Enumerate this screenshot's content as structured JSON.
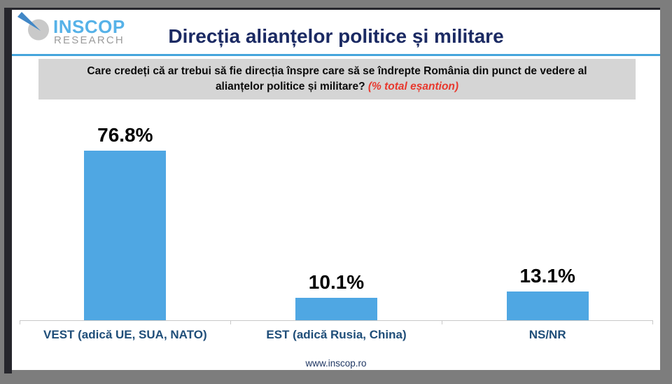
{
  "logo": {
    "brand": "INSCOP",
    "sub": "RESEARCH"
  },
  "header": {
    "title": "Direcția alianțelor politice și militare"
  },
  "question": {
    "text": "Care credeți că ar trebui să fie direcția înspre care să se îndrepte România din punct de vedere al alianțelor politice și militare?",
    "note": "(% total eșantion)"
  },
  "chart_data": {
    "type": "bar",
    "categories": [
      "VEST (adică UE, SUA, NATO)",
      "EST (adică Rusia, China)",
      "NS/NR"
    ],
    "values": [
      76.8,
      10.1,
      13.1
    ],
    "value_labels": [
      "76.8%",
      "10.1%",
      "13.1%"
    ],
    "title": "Direcția alianțelor politice și militare",
    "xlabel": "",
    "ylabel": "",
    "ylim": [
      0,
      100
    ],
    "grid": false,
    "legend": false,
    "bar_color": "#4FA7E3",
    "axis_color": "#C9C9C9"
  },
  "footer": {
    "url": "www.inscop.ro"
  },
  "colors": {
    "accent_blue": "#45A5DC",
    "bar_blue": "#4FA7E3",
    "title_navy": "#1B2A63",
    "category_navy": "#1F4E79",
    "note_red": "#E8382D",
    "frame_gray": "#7D7D7D",
    "question_bg": "#D5D5D5"
  }
}
